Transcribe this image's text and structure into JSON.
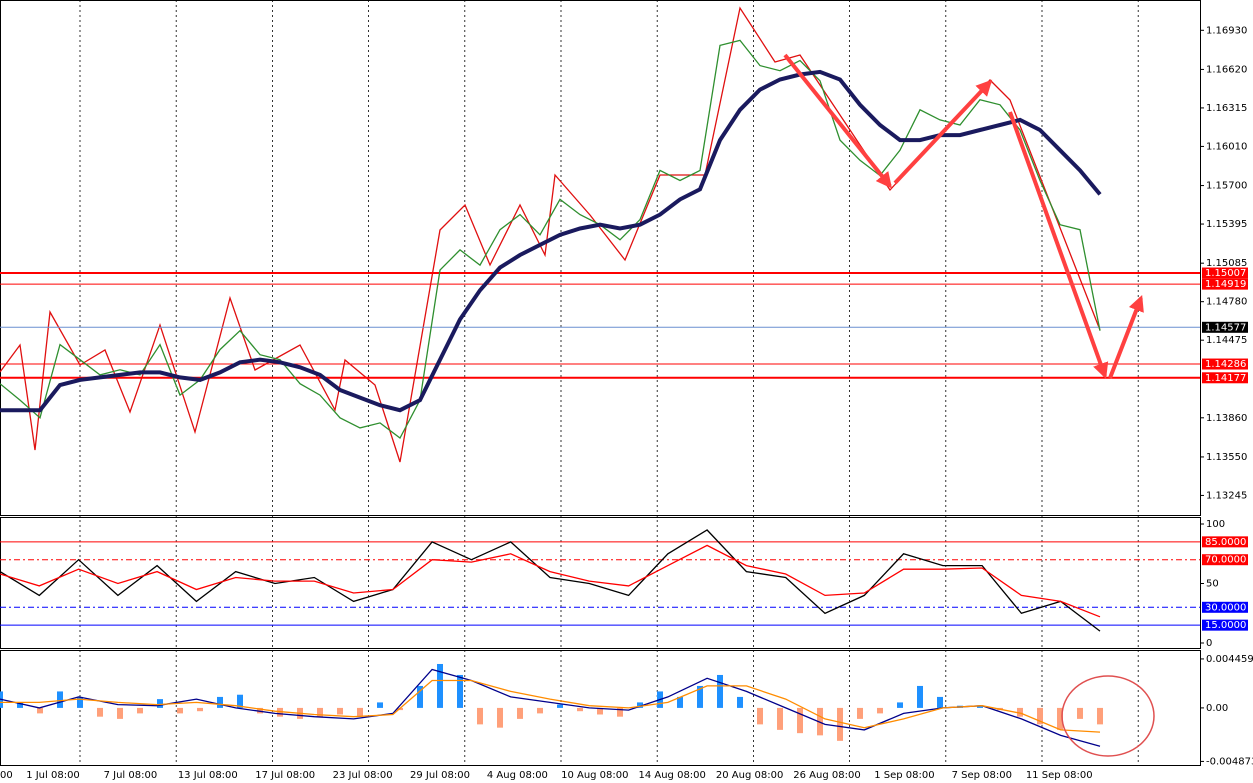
{
  "chart_data": [
    {
      "type": "line",
      "ylim": [
        1.1309,
        1.1717
      ],
      "yticks": [
        {
          "value": 1.1693,
          "label": "1.16930"
        },
        {
          "value": 1.1662,
          "label": "1.16620"
        },
        {
          "value": 1.16315,
          "label": "1.16315"
        },
        {
          "value": 1.1601,
          "label": "1.16010"
        },
        {
          "value": 1.157,
          "label": "1.15700"
        },
        {
          "value": 1.15395,
          "label": "1.15395"
        },
        {
          "value": 1.15085,
          "label": "1.15085"
        },
        {
          "value": 1.1478,
          "label": "1.14780"
        },
        {
          "value": 1.14475,
          "label": "1.14475"
        },
        {
          "value": 1.1386,
          "label": "1.13860"
        },
        {
          "value": 1.1355,
          "label": "1.13550"
        },
        {
          "value": 1.13245,
          "label": "1.13245"
        }
      ],
      "levels": [
        {
          "value": 1.15007,
          "label": "1.15007",
          "color": "#ff0000"
        },
        {
          "value": 1.14919,
          "label": "1.14919",
          "color": "#ff0000"
        },
        {
          "value": 1.14577,
          "label": "1.14577",
          "color": "#000000"
        },
        {
          "value": 1.14286,
          "label": "1.14286",
          "color": "#ff0000"
        },
        {
          "value": 1.14177,
          "label": "1.14177",
          "color": "#ff0000"
        }
      ],
      "series": [
        {
          "color": "#2f8f2f",
          "values": [
            1.1413,
            1.14,
            1.1386,
            1.1444,
            1.1432,
            1.142,
            1.1424,
            1.142,
            1.1444,
            1.1404,
            1.1416,
            1.144,
            1.1455,
            1.1436,
            1.1432,
            1.1413,
            1.1404,
            1.1386,
            1.1378,
            1.1382,
            1.137,
            1.14,
            1.1503,
            1.1519,
            1.1507,
            1.1535,
            1.1547,
            1.1531,
            1.1559,
            1.1547,
            1.1539,
            1.1527,
            1.1543,
            1.1582,
            1.1574,
            1.1582,
            1.1681,
            1.1685,
            1.1665,
            1.1661,
            1.1669,
            1.1653,
            1.1606,
            1.159,
            1.1578,
            1.1598,
            1.163,
            1.1622,
            1.1618,
            1.1638,
            1.1634,
            1.1614,
            1.1574,
            1.1539,
            1.1535,
            1.1455
          ]
        },
        {
          "color": "#1a1a5e",
          "values": [
            1.1392,
            1.1392,
            1.1392,
            1.1412,
            1.1416,
            1.1418,
            1.142,
            1.1422,
            1.1422,
            1.1418,
            1.1416,
            1.1422,
            1.143,
            1.1432,
            1.143,
            1.1426,
            1.142,
            1.1408,
            1.1402,
            1.1396,
            1.1392,
            1.14,
            1.1432,
            1.1464,
            1.1487,
            1.1505,
            1.1515,
            1.1523,
            1.1531,
            1.1536,
            1.1539,
            1.1536,
            1.1539,
            1.1547,
            1.1559,
            1.1567,
            1.1606,
            1.163,
            1.1646,
            1.1654,
            1.1658,
            1.166,
            1.1654,
            1.1634,
            1.1618,
            1.1606,
            1.1606,
            1.161,
            1.161,
            1.1614,
            1.1618,
            1.1622,
            1.1614,
            1.1598,
            1.1582,
            1.1563
          ]
        }
      ]
    },
    {
      "type": "line",
      "ylim": [
        0,
        100
      ],
      "yticks": [
        100,
        50,
        0
      ],
      "levels": [
        {
          "value": 85,
          "label": "85.0000",
          "color": "#ff0000"
        },
        {
          "value": 70,
          "label": "70.0000",
          "color": "#ff0000"
        },
        {
          "value": 30,
          "label": "30.0000",
          "color": "#0000ff"
        },
        {
          "value": 15,
          "label": "15.0000",
          "color": "#0000ff"
        }
      ],
      "series": [
        {
          "color": "#000000",
          "values": [
            60,
            40,
            70,
            40,
            65,
            35,
            60,
            50,
            55,
            35,
            45,
            85,
            70,
            85,
            55,
            50,
            40,
            75,
            95,
            60,
            55,
            25,
            40,
            75,
            65,
            65,
            25,
            35,
            10
          ]
        },
        {
          "color": "#ff0000",
          "values": [
            58,
            48,
            62,
            50,
            60,
            45,
            55,
            52,
            52,
            42,
            45,
            70,
            68,
            75,
            60,
            52,
            48,
            65,
            82,
            65,
            58,
            40,
            42,
            62,
            62,
            63,
            40,
            35,
            22
          ]
        }
      ]
    },
    {
      "type": "bar",
      "ylim": [
        -0.0052,
        0.005
      ],
      "yticks": [
        {
          "value": 0.0044593,
          "label": "0.0044593"
        },
        {
          "value": 0,
          "label": "0.00"
        },
        {
          "value": -0.0048733,
          "label": "-0.004873"
        }
      ],
      "colors": {
        "positive": "#1e90ff",
        "negative": "#ffa07a"
      },
      "values": [
        0.0015,
        0.0005,
        -0.0005,
        0.0015,
        0.001,
        -0.0008,
        -0.001,
        -0.0005,
        0.0008,
        -0.0005,
        -0.0003,
        0.001,
        0.0012,
        -0.0005,
        -0.0008,
        -0.001,
        -0.0008,
        -0.0006,
        -0.0008,
        0.0005,
        -0.0002,
        0.002,
        0.004,
        0.003,
        -0.0015,
        -0.0018,
        -0.001,
        -0.0005,
        0.0003,
        -0.0003,
        -0.0006,
        -0.0008,
        0.0005,
        0.0015,
        0.001,
        0.002,
        0.003,
        0.001,
        -0.0015,
        -0.002,
        -0.0023,
        -0.0025,
        -0.003,
        -0.001,
        -0.0005,
        0.0005,
        0.002,
        0.001,
        0.0002,
        0.0002,
        -0.0002,
        -0.0008,
        -0.0015,
        -0.002,
        -0.001,
        -0.0015
      ],
      "series": [
        {
          "color": "#00008b",
          "values": [
            0.0008,
            0,
            0.001,
            0.0003,
            0.0002,
            0.0008,
            0,
            -0.0005,
            -0.0008,
            -0.001,
            -0.0005,
            0.0035,
            0.0025,
            0.001,
            0.0005,
            0,
            -0.0002,
            0.001,
            0.0027,
            0.0015,
            0,
            -0.0015,
            -0.002,
            -0.0005,
            0,
            0.0002,
            -0.001,
            -0.0025,
            -0.0035
          ]
        },
        {
          "color": "#ff8c00",
          "values": [
            0.0005,
            0.0005,
            0.0008,
            0.0005,
            0.0003,
            0.0005,
            0.0002,
            -0.0003,
            -0.0006,
            -0.0008,
            -0.0006,
            0.0025,
            0.0025,
            0.0015,
            0.0008,
            0.0002,
            0,
            0.0005,
            0.002,
            0.002,
            0.0008,
            -0.001,
            -0.0018,
            -0.001,
            0,
            0.0002,
            -0.0005,
            -0.002,
            -0.0022
          ]
        }
      ]
    }
  ],
  "time_axis": {
    "labels": [
      "00",
      "1 Jul 08:00",
      "7 Jul 08:00",
      "13 Jul 08:00",
      "17 Jul 08:00",
      "23 Jul 08:00",
      "29 Jul 08:00",
      "4 Aug 08:00",
      "10 Aug 08:00",
      "14 Aug 08:00",
      "20 Aug 08:00",
      "26 Aug 08:00",
      "1 Sep 08:00",
      "7 Sep 08:00",
      "11 Sep 08:00"
    ]
  }
}
